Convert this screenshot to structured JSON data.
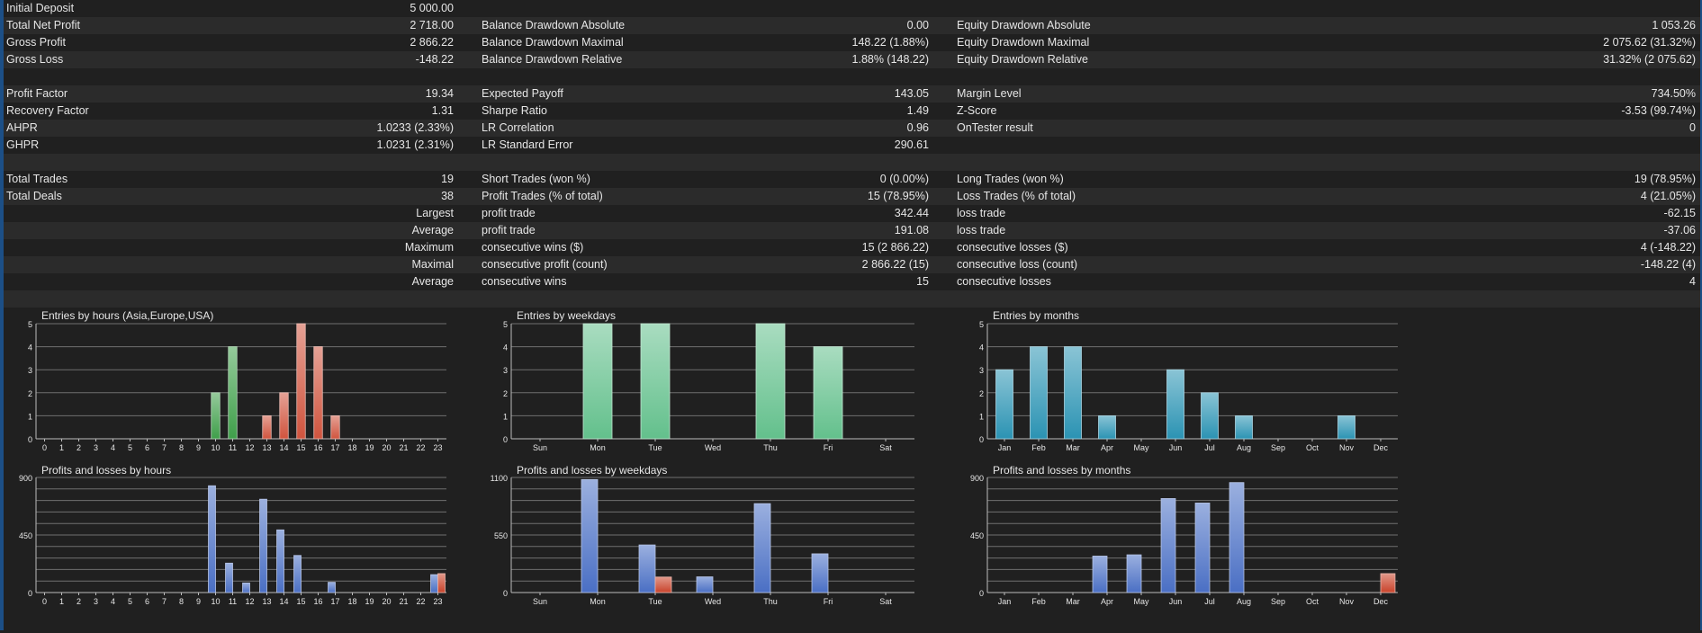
{
  "stats_rows": [
    {
      "c1_label": "Initial Deposit",
      "c1_value": "5 000.00"
    },
    {
      "c1_label": "Total Net Profit",
      "c1_value": "2 718.00",
      "c2_label": "Balance Drawdown Absolute",
      "c2_value": "0.00",
      "c3_label": "Equity Drawdown Absolute",
      "c3_value": "1 053.26"
    },
    {
      "c1_label": "Gross Profit",
      "c1_value": "2 866.22",
      "c2_label": "Balance Drawdown Maximal",
      "c2_value": "148.22 (1.88%)",
      "c3_label": "Equity Drawdown Maximal",
      "c3_value": "2 075.62 (31.32%)"
    },
    {
      "c1_label": "Gross Loss",
      "c1_value": "-148.22",
      "c2_label": "Balance Drawdown Relative",
      "c2_value": "1.88% (148.22)",
      "c3_label": "Equity Drawdown Relative",
      "c3_value": "31.32% (2 075.62)"
    },
    {},
    {
      "c1_label": "Profit Factor",
      "c1_value": "19.34",
      "c2_label": "Expected Payoff",
      "c2_value": "143.05",
      "c3_label": "Margin Level",
      "c3_value": "734.50%"
    },
    {
      "c1_label": "Recovery Factor",
      "c1_value": "1.31",
      "c2_label": "Sharpe Ratio",
      "c2_value": "1.49",
      "c3_label": "Z-Score",
      "c3_value": "-3.53 (99.74%)"
    },
    {
      "c1_label": "AHPR",
      "c1_value": "1.0233 (2.33%)",
      "c2_label": "LR Correlation",
      "c2_value": "0.96",
      "c3_label": "OnTester result",
      "c3_value": "0"
    },
    {
      "c1_label": "GHPR",
      "c1_value": "1.0231 (2.31%)",
      "c2_label": "LR Standard Error",
      "c2_value": "290.61"
    },
    {},
    {
      "c1_label": "Total Trades",
      "c1_value": "19",
      "c2_label": "Short Trades (won %)",
      "c2_value": "0 (0.00%)",
      "c3_label": "Long Trades (won %)",
      "c3_value": "19 (78.95%)"
    },
    {
      "c1_label": "Total Deals",
      "c1_value": "38",
      "c2_label": "Profit Trades (% of total)",
      "c2_value": "15 (78.95%)",
      "c3_label": "Loss Trades (% of total)",
      "c3_value": "4 (21.05%)"
    },
    {
      "c1_value": "Largest",
      "c2_label": "profit trade",
      "c2_value": "342.44",
      "c3_label": "loss trade",
      "c3_value": "-62.15"
    },
    {
      "c1_value": "Average",
      "c2_label": "profit trade",
      "c2_value": "191.08",
      "c3_label": "loss trade",
      "c3_value": "-37.06"
    },
    {
      "c1_value": "Maximum",
      "c2_label": "consecutive wins ($)",
      "c2_value": "15 (2 866.22)",
      "c3_label": "consecutive losses ($)",
      "c3_value": "4 (-148.22)"
    },
    {
      "c1_value": "Maximal",
      "c2_label": "consecutive profit (count)",
      "c2_value": "2 866.22 (15)",
      "c3_label": "consecutive loss (count)",
      "c3_value": "-148.22 (4)"
    },
    {
      "c1_value": "Average",
      "c2_label": "consecutive wins",
      "c2_value": "15",
      "c3_label": "consecutive losses",
      "c3_value": "4"
    },
    {}
  ],
  "colors": {
    "background": "#202020",
    "row_alt": "#2b2b2b",
    "grid": "#8a8a8a",
    "axis": "#bbbbbb",
    "green": "#3f9f4a",
    "red": "#d0543e",
    "teal": "#2b93b3",
    "blue": "#4a6fc4",
    "loss_red": "#c9432b",
    "mint": "#63c08c",
    "accent_edge": "#1c4f86"
  },
  "chart_data": [
    {
      "type": "bar",
      "title": "Entries by hours (Asia,Europe,USA)",
      "categories": [
        "0",
        "1",
        "2",
        "3",
        "4",
        "5",
        "6",
        "7",
        "8",
        "9",
        "10",
        "11",
        "12",
        "13",
        "14",
        "15",
        "16",
        "17",
        "18",
        "19",
        "20",
        "21",
        "22",
        "23"
      ],
      "series": [
        {
          "values": [
            0,
            0,
            0,
            0,
            0,
            0,
            0,
            0,
            0,
            0,
            2,
            4,
            0,
            1,
            2,
            5,
            4,
            1,
            0,
            0,
            0,
            0,
            0,
            0
          ]
        }
      ],
      "bar_colors": [
        "green",
        "green",
        "green",
        "green",
        "green",
        "green",
        "green",
        "green",
        "green",
        "green",
        "green",
        "green",
        "red",
        "red",
        "red",
        "red",
        "red",
        "red",
        "red",
        "red",
        "red",
        "red",
        "red",
        "red"
      ],
      "ylim": [
        0,
        5
      ],
      "yticks": [
        0,
        1,
        2,
        3,
        4,
        5
      ],
      "grid": true
    },
    {
      "type": "bar",
      "title": "Entries by weekdays",
      "categories": [
        "Sun",
        "Mon",
        "Tue",
        "Wed",
        "Thu",
        "Fri",
        "Sat"
      ],
      "series": [
        {
          "values": [
            0,
            5,
            5,
            0,
            5,
            4,
            0
          ]
        }
      ],
      "bar_color": "mint",
      "ylim": [
        0,
        5
      ],
      "yticks": [
        0,
        1,
        2,
        3,
        4,
        5
      ],
      "grid": true
    },
    {
      "type": "bar",
      "title": "Entries by months",
      "categories": [
        "Jan",
        "Feb",
        "Mar",
        "Apr",
        "May",
        "Jun",
        "Jul",
        "Aug",
        "Sep",
        "Oct",
        "Nov",
        "Dec"
      ],
      "series": [
        {
          "values": [
            3,
            4,
            4,
            1,
            0,
            3,
            2,
            1,
            0,
            0,
            1,
            0
          ]
        }
      ],
      "bar_color": "teal",
      "ylim": [
        0,
        5
      ],
      "yticks": [
        0,
        1,
        2,
        3,
        4,
        5
      ],
      "grid": true
    },
    {
      "type": "bar",
      "title": "Profits and losses by hours",
      "categories": [
        "0",
        "1",
        "2",
        "3",
        "4",
        "5",
        "6",
        "7",
        "8",
        "9",
        "10",
        "11",
        "12",
        "13",
        "14",
        "15",
        "16",
        "17",
        "18",
        "19",
        "20",
        "21",
        "22",
        "23"
      ],
      "series": [
        {
          "values": [
            0,
            0,
            0,
            0,
            0,
            0,
            0,
            0,
            0,
            0,
            835,
            230,
            75,
            730,
            490,
            290,
            0,
            80,
            0,
            0,
            0,
            0,
            0,
            140
          ]
        },
        {
          "values": [
            0,
            0,
            0,
            0,
            0,
            0,
            0,
            0,
            0,
            0,
            0,
            0,
            0,
            0,
            0,
            0,
            0,
            0,
            0,
            0,
            0,
            0,
            0,
            148
          ]
        }
      ],
      "series_colors": [
        "blue",
        "loss_red"
      ],
      "ylim": [
        0,
        900
      ],
      "yticks": [
        0,
        450,
        900
      ],
      "grid": true
    },
    {
      "type": "bar",
      "title": "Profits and losses by weekdays",
      "categories": [
        "Sun",
        "Mon",
        "Tue",
        "Wed",
        "Thu",
        "Fri",
        "Sat"
      ],
      "series": [
        {
          "values": [
            0,
            1080,
            455,
            150,
            850,
            370,
            0
          ]
        },
        {
          "values": [
            0,
            0,
            148,
            0,
            0,
            0,
            0
          ]
        }
      ],
      "series_colors": [
        "blue",
        "loss_red"
      ],
      "ylim": [
        0,
        1100
      ],
      "yticks": [
        0,
        550,
        1100
      ],
      "grid": true
    },
    {
      "type": "bar",
      "title": "Profits and losses by months",
      "categories": [
        "Jan",
        "Feb",
        "Mar",
        "Apr",
        "May",
        "Jun",
        "Jul",
        "Aug",
        "Sep",
        "Oct",
        "Nov",
        "Dec"
      ],
      "series": [
        {
          "values": [
            0,
            0,
            0,
            285,
            295,
            735,
            700,
            860,
            0,
            0,
            0,
            0
          ]
        },
        {
          "values": [
            0,
            0,
            0,
            0,
            0,
            0,
            0,
            0,
            0,
            0,
            0,
            148
          ]
        }
      ],
      "series_colors": [
        "blue",
        "loss_red"
      ],
      "ylim": [
        0,
        900
      ],
      "yticks": [
        0,
        450,
        900
      ],
      "grid": true
    }
  ]
}
